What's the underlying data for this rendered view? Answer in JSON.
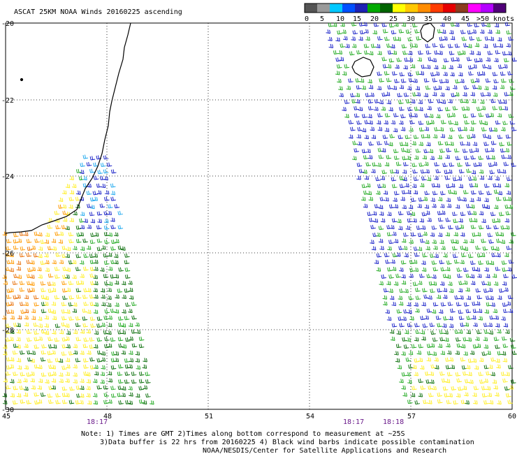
{
  "title": "ASCAT 25KM NOAA Winds 20160225 ascending",
  "colorbar": {
    "colors": [
      "#545454",
      "#9a9a9a",
      "#00c8ff",
      "#0050ff",
      "#1e22b4",
      "#00aa00",
      "#006400",
      "#ffff00",
      "#ffc800",
      "#ff8c00",
      "#ff3c00",
      "#e60000",
      "#8c3c1e",
      "#ff00ff",
      "#b400ff",
      "#500078"
    ],
    "labels": [
      "0",
      "5",
      "10",
      "15",
      "20",
      "25",
      "30",
      "35",
      "40",
      "45",
      ">50",
      "knots"
    ]
  },
  "axes": {
    "lat_labels": [
      "-20",
      "-22",
      "-24",
      "-26",
      "-28",
      "-30"
    ],
    "lon_labels": [
      "45",
      "48",
      "51",
      "54",
      "57",
      "60"
    ]
  },
  "times": [
    "18:17",
    "18:17",
    "18:18"
  ],
  "notes": [
    "Note: 1) Times are GMT 2)Times along bottom correspond to measurement at ~25S",
    "3)Data buffer is 22 hrs from 20160225 4) Black wind barbs indicate possible contamination",
    "NOAA/NESDIS/Center for Satellite Applications and Research"
  ],
  "wind_colors": {
    "blue": "#1a22c8",
    "green": "#22aa22",
    "dkgreen": "#0a6e0a",
    "yellow": "#ffee22",
    "orange": "#ff9900",
    "dkorange": "#e8700a",
    "cyan": "#22aaee",
    "black": "#000000"
  }
}
